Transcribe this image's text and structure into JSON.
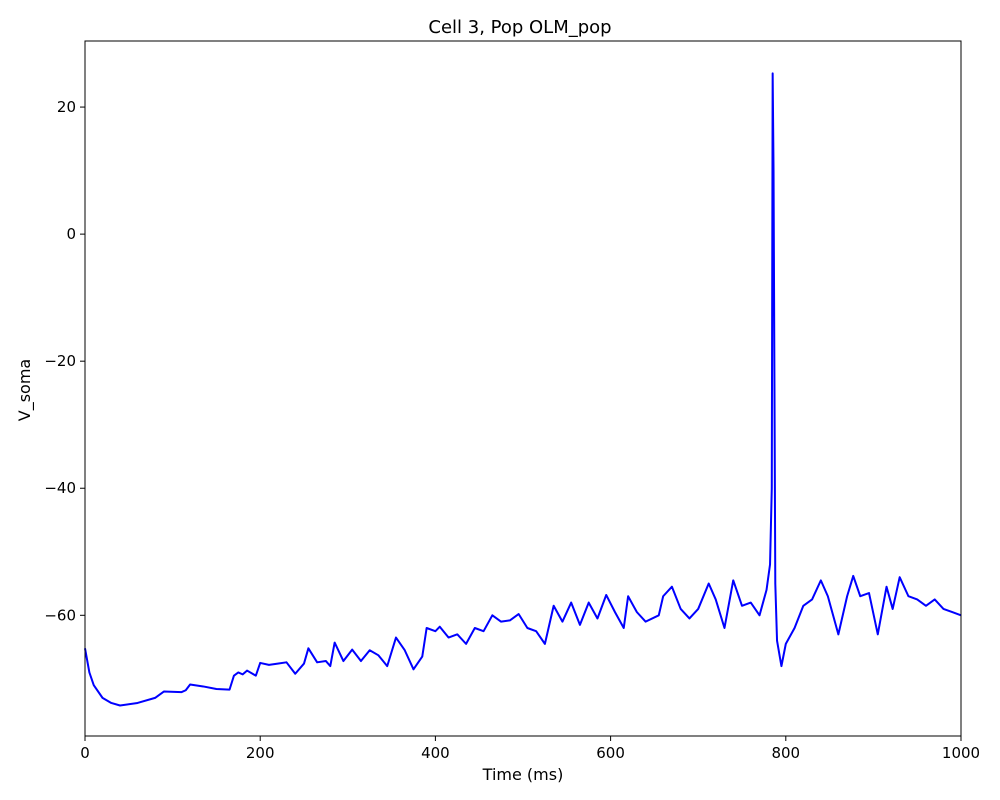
{
  "chart_data": {
    "type": "line",
    "title": "Cell 3, Pop OLM_pop",
    "x_label": "Time (ms)",
    "y_label": "V_soma",
    "color": "#0000ff",
    "grid": false,
    "xlim": [
      0,
      1000
    ],
    "xticks": [
      0,
      200,
      400,
      600,
      800,
      1000
    ],
    "ylim": [
      -79,
      30.4
    ],
    "yticks": [
      20,
      0,
      {
        "value": -20,
        "label": "−20"
      },
      {
        "value": -40,
        "label": "−40"
      },
      {
        "value": -60,
        "label": "−60"
      }
    ],
    "x": [
      0,
      5,
      10,
      20,
      30,
      40,
      60,
      80,
      90,
      110,
      115,
      120,
      135,
      150,
      165,
      170,
      175,
      180,
      185,
      195,
      200,
      210,
      220,
      230,
      240,
      250,
      255,
      265,
      275,
      280,
      285,
      295,
      305,
      315,
      325,
      335,
      345,
      355,
      365,
      375,
      385,
      390,
      400,
      405,
      415,
      425,
      435,
      445,
      455,
      465,
      475,
      485,
      495,
      505,
      515,
      525,
      535,
      545,
      555,
      565,
      575,
      585,
      595,
      605,
      615,
      620,
      630,
      640,
      655,
      660,
      670,
      680,
      690,
      700,
      712,
      720,
      730,
      740,
      750,
      760,
      770,
      778,
      782,
      784,
      785,
      786,
      788,
      790,
      795,
      800,
      810,
      820,
      830,
      840,
      848,
      860,
      870,
      877,
      885,
      895,
      905,
      915,
      922,
      930,
      940,
      950,
      960,
      970,
      980,
      990,
      1000
    ],
    "values": [
      -65.2,
      -69,
      -71,
      -73,
      -73.8,
      -74.2,
      -73.8,
      -73,
      -72,
      -72.1,
      -71.8,
      -70.9,
      -71.2,
      -71.6,
      -71.7,
      -69.5,
      -69,
      -69.3,
      -68.7,
      -69.5,
      -67.5,
      -67.8,
      -67.6,
      -67.4,
      -69.2,
      -67.6,
      -65.2,
      -67.4,
      -67.2,
      -68,
      -64.3,
      -67.2,
      -65.4,
      -67.2,
      -65.5,
      -66.3,
      -68,
      -63.5,
      -65.5,
      -68.5,
      -66.5,
      -62,
      -62.5,
      -61.8,
      -63.5,
      -63,
      -64.5,
      -62,
      -62.5,
      -60,
      -61,
      -60.8,
      -59.8,
      -62,
      -62.5,
      -64.5,
      -58.5,
      -61,
      -58,
      -61.5,
      -58,
      -60.5,
      -56.8,
      -59.5,
      -62,
      -57,
      -59.5,
      -61,
      -60,
      -57,
      -55.5,
      -59,
      -60.5,
      -59,
      -55,
      -57.5,
      -62,
      -54.5,
      -58.5,
      -58,
      -60,
      -56,
      -52,
      -40,
      25.3,
      10,
      -55,
      -64,
      -68,
      -64.5,
      -62,
      -58.5,
      -57.5,
      -54.5,
      -57,
      -63,
      -57,
      -53.8,
      -57,
      -56.5,
      -63,
      -55.5,
      -59,
      -54,
      -57,
      -57.5,
      -58.5,
      -57.5,
      -59,
      -59.5,
      -60
    ]
  }
}
